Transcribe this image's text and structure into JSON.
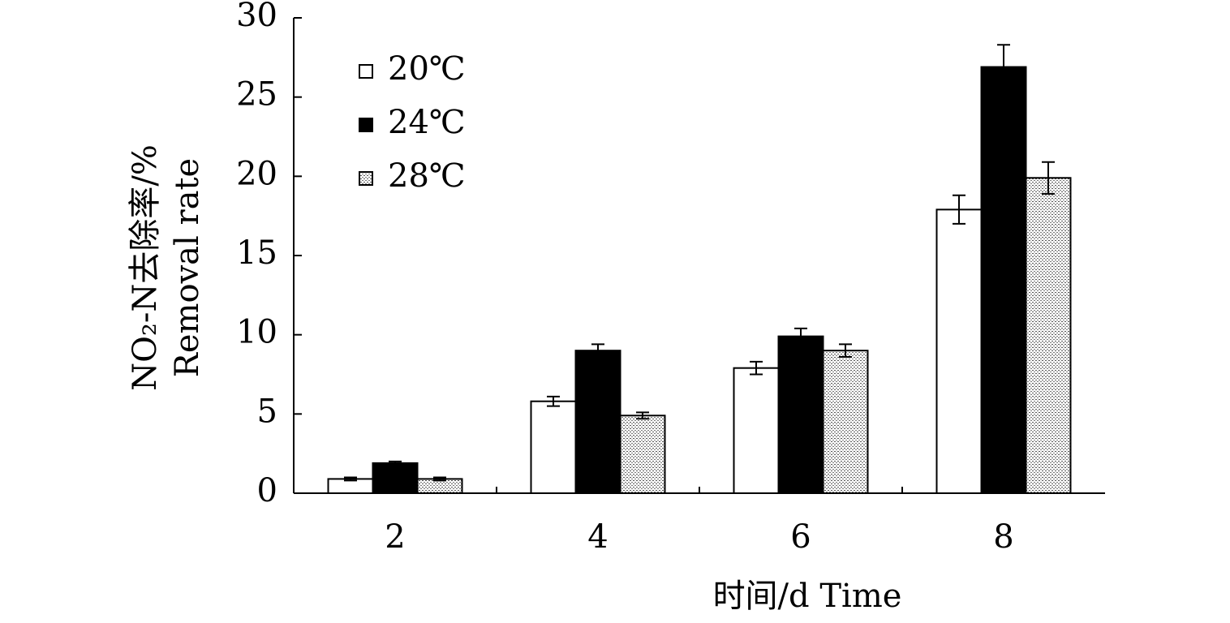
{
  "chart_data": {
    "type": "bar",
    "categories": [
      "2",
      "4",
      "6",
      "8"
    ],
    "series": [
      {
        "name": "20℃",
        "color": "#ffffff",
        "values": [
          0.9,
          5.8,
          7.9,
          17.9
        ],
        "errors": [
          0.1,
          0.3,
          0.4,
          0.9
        ]
      },
      {
        "name": "24℃",
        "color": "#000000",
        "values": [
          1.9,
          9.0,
          9.9,
          26.9
        ],
        "errors": [
          0.1,
          0.4,
          0.5,
          1.4
        ]
      },
      {
        "name": "28℃",
        "color": "#d9d9d9",
        "values": [
          0.9,
          4.9,
          9.0,
          19.9
        ],
        "errors": [
          0.1,
          0.2,
          0.4,
          1.0
        ]
      }
    ],
    "ylabel": [
      "NO₂-N去除率/%",
      "Removal rate"
    ],
    "xlabel": "时间/d Time",
    "ylim": [
      0,
      30
    ],
    "yticks": [
      0,
      5,
      10,
      15,
      20,
      25,
      30
    ],
    "legend": "upper left"
  }
}
